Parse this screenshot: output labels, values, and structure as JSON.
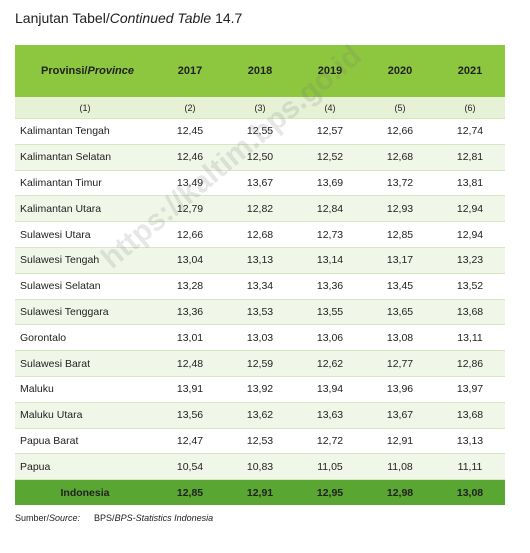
{
  "title": {
    "prefix": "Lanjutan Tabel/",
    "italic": "Continued Table",
    "suffix": "14.7"
  },
  "table": {
    "header": {
      "province": "Provinsi/",
      "province_italic": "Province",
      "years": [
        "2017",
        "2018",
        "2019",
        "2020",
        "2021"
      ]
    },
    "numbering": [
      "(1)",
      "(2)",
      "(3)",
      "(4)",
      "(5)",
      "(6)"
    ],
    "rows": [
      {
        "name": "Kalimantan Tengah",
        "values": [
          "12,45",
          "12,55",
          "12,57",
          "12,66",
          "12,74"
        ]
      },
      {
        "name": "Kalimantan Selatan",
        "values": [
          "12,46",
          "12,50",
          "12,52",
          "12,68",
          "12,81"
        ]
      },
      {
        "name": "Kalimantan Timur",
        "values": [
          "13,49",
          "13,67",
          "13,69",
          "13,72",
          "13,81"
        ]
      },
      {
        "name": "Kalimantan Utara",
        "values": [
          "12,79",
          "12,82",
          "12,84",
          "12,93",
          "12,94"
        ]
      },
      {
        "name": "Sulawesi Utara",
        "values": [
          "12,66",
          "12,68",
          "12,73",
          "12,85",
          "12,94"
        ]
      },
      {
        "name": "Sulawesi Tengah",
        "values": [
          "13,04",
          "13,13",
          "13,14",
          "13,17",
          "13,23"
        ]
      },
      {
        "name": "Sulawesi Selatan",
        "values": [
          "13,28",
          "13,34",
          "13,36",
          "13,45",
          "13,52"
        ]
      },
      {
        "name": "Sulawesi Tenggara",
        "values": [
          "13,36",
          "13,53",
          "13,55",
          "13,65",
          "13,68"
        ]
      },
      {
        "name": "Gorontalo",
        "values": [
          "13,01",
          "13,03",
          "13,06",
          "13,08",
          "13,11"
        ]
      },
      {
        "name": "Sulawesi Barat",
        "values": [
          "12,48",
          "12,59",
          "12,62",
          "12,77",
          "12,86"
        ]
      },
      {
        "name": "Maluku",
        "values": [
          "13,91",
          "13,92",
          "13,94",
          "13,96",
          "13,97"
        ]
      },
      {
        "name": "Maluku Utara",
        "values": [
          "13,56",
          "13,62",
          "13,63",
          "13,67",
          "13,68"
        ]
      },
      {
        "name": "Papua Barat",
        "values": [
          "12,47",
          "12,53",
          "12,72",
          "12,91",
          "13,13"
        ]
      },
      {
        "name": "Papua",
        "values": [
          "10,54",
          "10,83",
          "11,05",
          "11,08",
          "11,11"
        ]
      }
    ],
    "total": {
      "name": "Indonesia",
      "values": [
        "12,85",
        "12,91",
        "12,95",
        "12,98",
        "13,08"
      ]
    }
  },
  "source": {
    "label": "Sumber/",
    "label_italic": "Source:",
    "text": "BPS/",
    "text_italic": "BPS-Statistics Indonesia"
  },
  "watermark": "https://kaltim.bps.go.id"
}
